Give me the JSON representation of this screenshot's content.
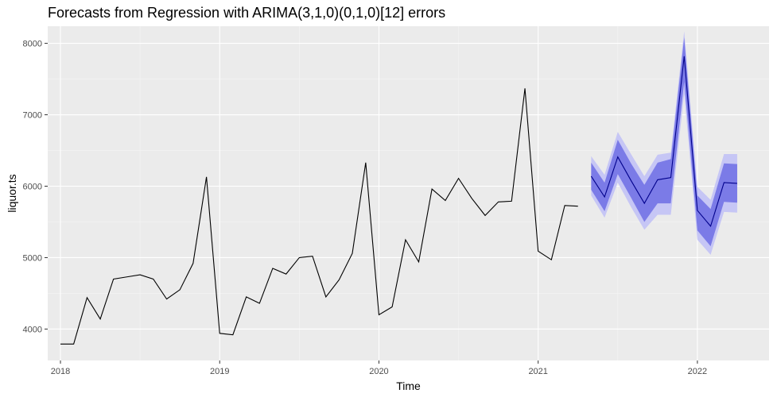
{
  "chart_data": {
    "type": "line",
    "title": "Forecasts from Regression with ARIMA(3,1,0)(0,1,0)[12] errors",
    "xlabel": "Time",
    "ylabel": "liquor.ts",
    "xlim": [
      2017.92,
      2022.45
    ],
    "ylim": [
      3560,
      8240
    ],
    "x_ticks": [
      2018,
      2019,
      2020,
      2021,
      2022
    ],
    "x_tick_labels": [
      "2018",
      "2019",
      "2020",
      "2021",
      "2022"
    ],
    "y_ticks": [
      4000,
      5000,
      6000,
      7000,
      8000
    ],
    "y_tick_labels": [
      "4000",
      "5000",
      "6000",
      "7000",
      "8000"
    ],
    "grid": true,
    "legend": "none",
    "colors": {
      "panel": "#ebebeb",
      "grid_major": "#ffffff",
      "grid_minor": "#f5f5f5",
      "history_line": "#000000",
      "forecast_line": "#00008b",
      "band_95": "#c6c6f5",
      "band_80": "#7b7be7"
    },
    "history": {
      "x": [
        2018.0,
        2018.083,
        2018.167,
        2018.25,
        2018.333,
        2018.417,
        2018.5,
        2018.583,
        2018.667,
        2018.75,
        2018.833,
        2018.917,
        2019.0,
        2019.083,
        2019.167,
        2019.25,
        2019.333,
        2019.417,
        2019.5,
        2019.583,
        2019.667,
        2019.75,
        2019.833,
        2019.917,
        2020.0,
        2020.083,
        2020.167,
        2020.25,
        2020.333,
        2020.417,
        2020.5,
        2020.583,
        2020.667,
        2020.75,
        2020.833,
        2020.917,
        2021.0,
        2021.083,
        2021.167,
        2021.25
      ],
      "values": [
        3790,
        3790,
        4440,
        4140,
        4700,
        4730,
        4760,
        4700,
        4420,
        4550,
        4920,
        6130,
        3940,
        3920,
        4450,
        4360,
        4850,
        4770,
        5000,
        5020,
        4450,
        4690,
        5060,
        6330,
        4200,
        4310,
        5250,
        4940,
        5960,
        5800,
        6110,
        5830,
        5590,
        5780,
        5790,
        7370,
        5090,
        4970,
        5730,
        5720
      ]
    },
    "forecast": {
      "x": [
        2021.333,
        2021.417,
        2021.5,
        2021.583,
        2021.667,
        2021.75,
        2021.833,
        2021.917,
        2022.0,
        2022.083,
        2022.167,
        2022.25
      ],
      "mean": [
        6140,
        5850,
        6410,
        6080,
        5760,
        6090,
        6120,
        7820,
        5660,
        5440,
        6050,
        6040
      ],
      "lo80": [
        5950,
        5650,
        6170,
        5840,
        5500,
        5760,
        5760,
        7460,
        5380,
        5160,
        5780,
        5770
      ],
      "hi80": [
        6330,
        6050,
        6650,
        6320,
        6020,
        6330,
        6380,
        8080,
        5870,
        5680,
        6320,
        6310
      ],
      "lo95": [
        5870,
        5560,
        6050,
        5710,
        5390,
        5600,
        5600,
        7290,
        5250,
        5040,
        5640,
        5630
      ],
      "hi95": [
        6420,
        6160,
        6760,
        6450,
        6140,
        6440,
        6470,
        8170,
        5990,
        5810,
        6450,
        6450
      ]
    }
  }
}
